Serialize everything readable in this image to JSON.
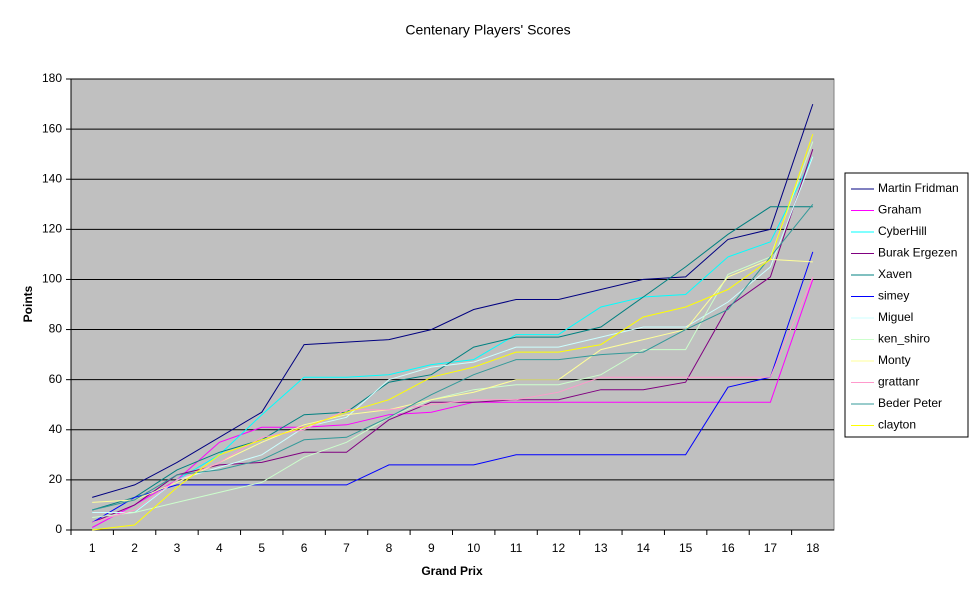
{
  "chart_data": {
    "type": "line",
    "title": "Centenary Players' Scores",
    "x_label": "Grand Prix",
    "y_label": "Points",
    "categories": [
      "1",
      "2",
      "3",
      "4",
      "5",
      "6",
      "7",
      "8",
      "9",
      "10",
      "11",
      "12",
      "13",
      "14",
      "15",
      "16",
      "17",
      "18"
    ],
    "ylim": [
      0,
      180
    ],
    "yticks": [
      0,
      20,
      40,
      60,
      80,
      100,
      120,
      140,
      160,
      180
    ],
    "grid": true,
    "legend": "right",
    "series": [
      {
        "name": "Martin Fridman",
        "color": "#000080",
        "values": [
          13,
          18,
          27,
          37,
          47,
          74,
          75,
          76,
          80,
          88,
          92,
          92,
          96,
          100,
          101,
          116,
          120,
          170
        ]
      },
      {
        "name": "Graham",
        "color": "#ff00ff",
        "values": [
          1,
          10,
          20,
          35,
          41,
          41,
          42,
          46,
          47,
          51,
          51,
          51,
          51,
          51,
          51,
          51,
          51,
          100
        ]
      },
      {
        "name": "CyberHill",
        "color": "#00ffff",
        "values": [
          7,
          7,
          20,
          30,
          46,
          61,
          61,
          62,
          66,
          68,
          78,
          78,
          89,
          93,
          94,
          109,
          115,
          149
        ]
      },
      {
        "name": "Burak Ergezen",
        "color": "#800080",
        "values": [
          3,
          10,
          22,
          26,
          27,
          31,
          31,
          44,
          51,
          51,
          52,
          52,
          56,
          56,
          59,
          89,
          101,
          152
        ]
      },
      {
        "name": "Xaven",
        "color": "#008080",
        "values": [
          8,
          13,
          24,
          31,
          36,
          46,
          47,
          59,
          62,
          73,
          77,
          77,
          81,
          93,
          105,
          118,
          129,
          129
        ]
      },
      {
        "name": "simey",
        "color": "#0000ff",
        "values": [
          3,
          13,
          18,
          18,
          18,
          18,
          18,
          26,
          26,
          26,
          30,
          30,
          30,
          30,
          30,
          57,
          61,
          111
        ]
      },
      {
        "name": "Miguel",
        "color": "#ccffff",
        "values": [
          7,
          7,
          20,
          25,
          30,
          41,
          45,
          60,
          65,
          67,
          73,
          73,
          77,
          81,
          81,
          91,
          105,
          149
        ]
      },
      {
        "name": "ken_shiro",
        "color": "#ccffcc",
        "values": [
          5,
          7,
          11,
          15,
          19,
          29,
          35,
          45,
          52,
          56,
          58,
          58,
          62,
          72,
          72,
          102,
          109,
          155
        ]
      },
      {
        "name": "Monty",
        "color": "#ffff99",
        "values": [
          11,
          12,
          19,
          27,
          35,
          42,
          46,
          48,
          52,
          55,
          60,
          60,
          72,
          76,
          80,
          101,
          108,
          107
        ]
      },
      {
        "name": "grattanr",
        "color": "#ff99cc",
        "values": [
          3,
          8,
          20,
          27,
          37,
          40,
          48,
          48,
          50,
          52,
          52,
          55,
          61,
          61,
          61,
          61,
          61,
          101
        ]
      },
      {
        "name": "Beder Peter",
        "color": "#339999",
        "values": [
          8,
          12,
          22,
          24,
          28,
          36,
          37,
          45,
          54,
          62,
          68,
          68,
          70,
          71,
          80,
          88,
          109,
          130
        ]
      },
      {
        "name": "clayton",
        "color": "#ffff00",
        "values": [
          0,
          2,
          17,
          30,
          36,
          41,
          47,
          52,
          61,
          65,
          71,
          71,
          74,
          85,
          89,
          96,
          108,
          158
        ]
      }
    ]
  }
}
